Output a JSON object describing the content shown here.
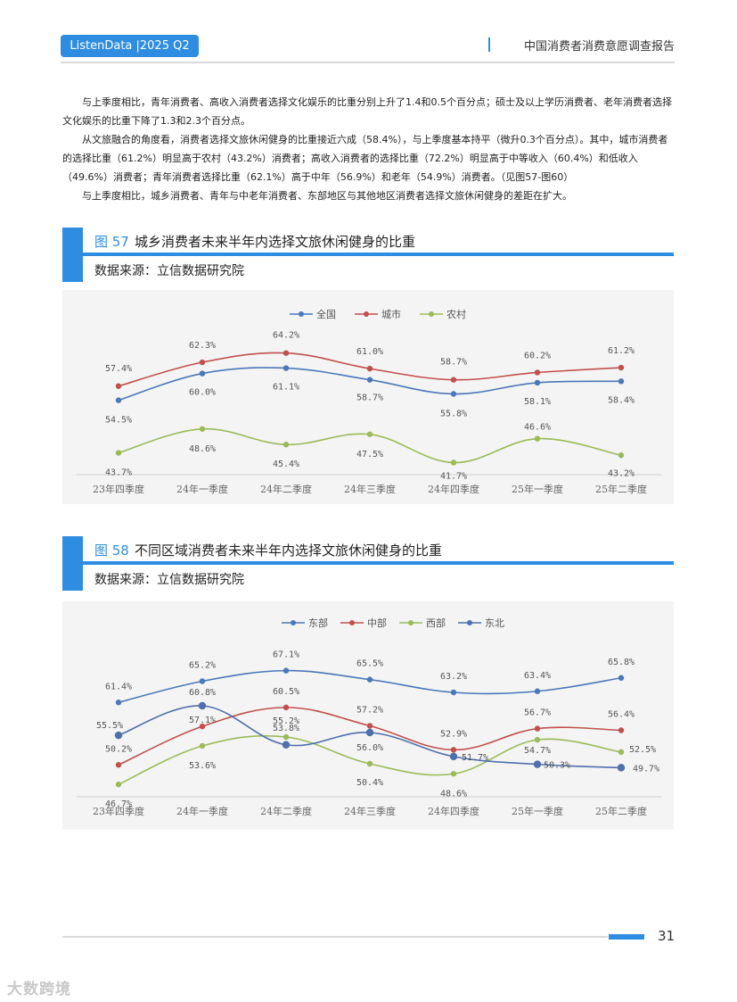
{
  "header": {
    "badge": "ListenData |2025 Q2",
    "title": "中国消费者消费意愿调查报告"
  },
  "body_paragraphs": [
    "与上季度相比，青年消费者、高收入消费者选择文化娱乐的比重分别上升了1.4和0.5个百分点；硕士及以上学历消费者、老年消费者选择文化娱乐的比重下降了1.3和2.3个百分点。",
    "从文旅融合的角度看，消费者选择文旅休闲健身的比重接近六成（58.4%），与上季度基本持平（微升0.3个百分点）。其中，城市消费者的选择比重（61.2%）明显高于农村（43.2%）消费者；高收入消费者的选择比重（72.2%）明显高于中等收入（60.4%）和低收入（49.6%）消费者；青年消费者选择比重（62.1%）高于中年（56.9%）和老年（54.9%）消费者。（见图57-图60）",
    "与上季度相比，城乡消费者、青年与中老年消费者、东部地区与其他地区消费者选择文旅休闲健身的差距在扩大。"
  ],
  "figure57": {
    "number": "图 57",
    "caption": "城乡消费者未来半年内选择文旅休闲健身的比重",
    "source": "数据来源：立信数据研究院"
  },
  "figure58": {
    "number": "图 58",
    "caption": "不同区域消费者未来半年内选择文旅休闲健身的比重",
    "source": "数据来源：立信数据研究院"
  },
  "chart_data": [
    {
      "type": "line",
      "title": "城乡消费者未来半年内选择文旅休闲健身的比重",
      "categories": [
        "23年四季度",
        "24年一季度",
        "24年二季度",
        "24年三季度",
        "24年四季度",
        "25年一季度",
        "25年二季度"
      ],
      "ylim": [
        35,
        70
      ],
      "legend_position": "top-center",
      "series": [
        {
          "name": "全国",
          "color": "#4a78b8",
          "values": [
            54.5,
            60.0,
            61.1,
            58.7,
            55.8,
            58.1,
            58.4
          ],
          "labels": [
            "54.5%",
            "60.0%",
            "61.1%",
            "58.7%",
            "55.8%",
            "58.1%",
            "58.4%"
          ]
        },
        {
          "name": "城市",
          "color": "#c0504d",
          "values": [
            57.4,
            62.3,
            64.2,
            61.0,
            58.7,
            60.2,
            61.2
          ],
          "labels": [
            "57.4%",
            "62.3%",
            "64.2%",
            "61.0%",
            "58.7%",
            "60.2%",
            "61.2%"
          ]
        },
        {
          "name": "农村",
          "color": "#9bbb59",
          "values": [
            43.7,
            48.6,
            45.4,
            47.5,
            41.7,
            46.6,
            43.2
          ],
          "labels": [
            "43.7%",
            "48.6%",
            "45.4%",
            "47.5%",
            "41.7%",
            "46.6%",
            "43.2%"
          ]
        }
      ]
    },
    {
      "type": "line",
      "title": "不同区域消费者未来半年内选择文旅休闲健身的比重",
      "categories": [
        "23年四季度",
        "24年一季度",
        "24年二季度",
        "24年三季度",
        "24年四季度",
        "25年一季度",
        "25年二季度"
      ],
      "ylim": [
        40,
        72
      ],
      "legend_position": "top-center",
      "series": [
        {
          "name": "东部",
          "color": "#4a78b8",
          "values": [
            61.4,
            65.2,
            67.1,
            65.5,
            63.2,
            63.4,
            65.8
          ],
          "labels": [
            "61.4%",
            "65.2%",
            "67.1%",
            "65.5%",
            "63.2%",
            "63.4%",
            "65.8%"
          ]
        },
        {
          "name": "中部",
          "color": "#c0504d",
          "values": [
            50.2,
            57.1,
            60.5,
            57.2,
            52.9,
            56.7,
            56.4
          ],
          "labels": [
            "50.2%",
            "57.1%",
            "60.5%",
            "57.2%",
            "52.9%",
            "56.7%",
            "56.4%"
          ]
        },
        {
          "name": "西部",
          "color": "#9bbb59",
          "values": [
            46.7,
            53.6,
            55.2,
            50.4,
            48.6,
            54.7,
            52.5
          ],
          "labels": [
            "46.7%",
            "53.6%",
            "55.2%",
            "50.4%",
            "48.6%",
            "54.7%",
            "52.5%"
          ]
        },
        {
          "name": "东北",
          "color": "#4f6fad",
          "values": [
            55.5,
            60.8,
            53.8,
            56.0,
            51.7,
            50.3,
            49.7
          ],
          "labels": [
            "55.5%",
            "60.8%",
            "53.8%",
            "56.0%",
            "51.7%",
            "50.3%",
            "49.7%"
          ]
        }
      ]
    }
  ],
  "footer": {
    "page_number": "31",
    "watermark": "大数跨境"
  }
}
